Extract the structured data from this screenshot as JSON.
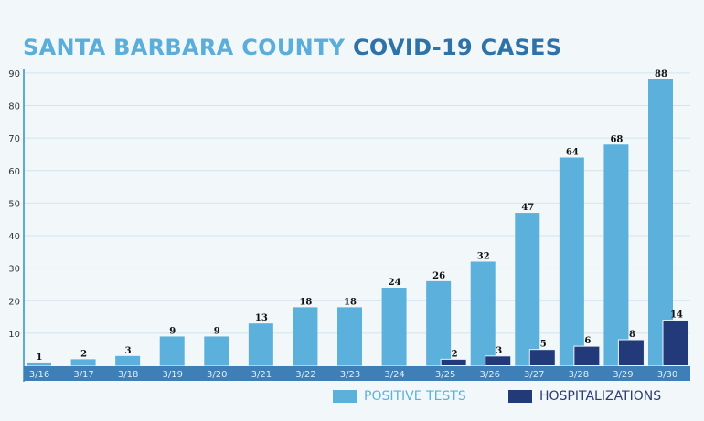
{
  "chart_data": {
    "type": "bar",
    "title_part1": "SANTA BARBARA COUNTY",
    "title_part2": "COVID-19 CASES",
    "categories": [
      "3/16",
      "3/17",
      "3/18",
      "3/19",
      "3/20",
      "3/21",
      "3/22",
      "3/23",
      "3/24",
      "3/25",
      "3/26",
      "3/27",
      "3/28",
      "3/29",
      "3/30"
    ],
    "series": [
      {
        "name": "POSITIVE TESTS",
        "color": "#5cb1dc",
        "values": [
          1,
          2,
          3,
          9,
          9,
          13,
          18,
          18,
          24,
          26,
          32,
          47,
          64,
          68,
          88
        ]
      },
      {
        "name": "HOSPITALIZATIONS",
        "color": "#233a7a",
        "values": [
          null,
          null,
          null,
          null,
          null,
          null,
          null,
          null,
          null,
          2,
          3,
          5,
          6,
          8,
          14
        ]
      }
    ],
    "yticks": [
      10,
      20,
      30,
      40,
      50,
      60,
      70,
      80,
      90
    ],
    "ylim": [
      0,
      90
    ],
    "grid": true,
    "legend": "bottom-right"
  }
}
